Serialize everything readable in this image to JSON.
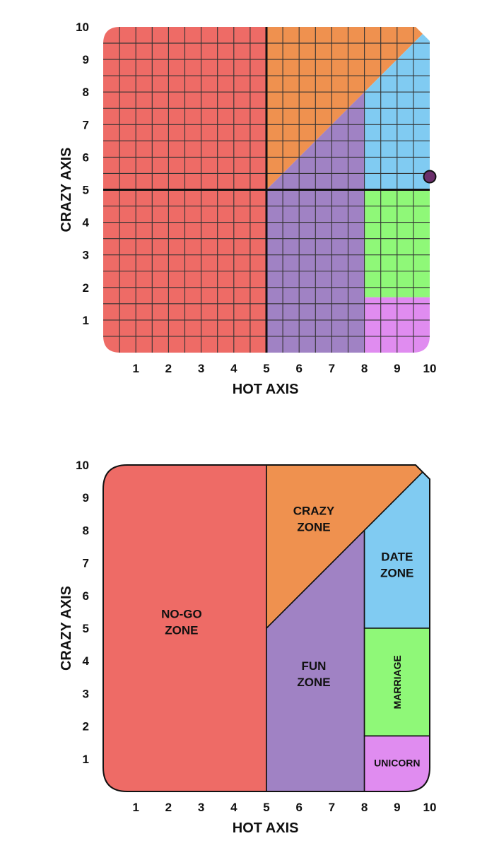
{
  "colors": {
    "no_go": "#ee6b66",
    "crazy": "#ef914f",
    "fun": "#a082c4",
    "date": "#80cbf2",
    "marriage": "#8ff878",
    "unicorn": "#e08cf0",
    "grid_line": "#333333",
    "axis_line": "#111111",
    "point": "#6b2e6b"
  },
  "chart_data": [
    {
      "type": "scatter",
      "variant": "grid-zones",
      "title": "",
      "xlabel": "HOT AXIS",
      "ylabel": "CRAZY AXIS",
      "xlim": [
        0,
        10
      ],
      "ylim": [
        0,
        10
      ],
      "x_ticks": [
        "1",
        "2",
        "3",
        "4",
        "5",
        "6",
        "7",
        "8",
        "9",
        "10"
      ],
      "y_ticks": [
        "1",
        "2",
        "3",
        "4",
        "5",
        "6",
        "7",
        "8",
        "9",
        "10"
      ],
      "grid": true,
      "grid_step": 0.5,
      "crosshair": {
        "x": 5,
        "y": 5
      },
      "points": [
        {
          "x": 10,
          "y": 5.4
        }
      ]
    },
    {
      "type": "area",
      "variant": "labeled-zones",
      "title": "",
      "xlabel": "HOT AXIS",
      "ylabel": "CRAZY AXIS",
      "xlim": [
        0,
        10
      ],
      "ylim": [
        0,
        10
      ],
      "x_ticks": [
        "1",
        "2",
        "3",
        "4",
        "5",
        "6",
        "7",
        "8",
        "9",
        "10"
      ],
      "y_ticks": [
        "1",
        "2",
        "3",
        "4",
        "5",
        "6",
        "7",
        "8",
        "9",
        "10"
      ],
      "grid": false,
      "zones": [
        {
          "key": "no_go",
          "label_lines": [
            "NO-GO",
            "ZONE"
          ],
          "polygon": [
            [
              0,
              0
            ],
            [
              5,
              0
            ],
            [
              5,
              10
            ],
            [
              0,
              10
            ]
          ]
        },
        {
          "key": "crazy",
          "label_lines": [
            "CRAZY",
            "ZONE"
          ],
          "polygon": [
            [
              5,
              5
            ],
            [
              5,
              10
            ],
            [
              10,
              10
            ]
          ]
        },
        {
          "key": "fun",
          "label_lines": [
            "FUN",
            "ZONE"
          ],
          "polygon": [
            [
              5,
              0
            ],
            [
              8,
              0
            ],
            [
              8,
              8
            ],
            [
              5,
              5
            ]
          ]
        },
        {
          "key": "date",
          "label_lines": [
            "DATE",
            "ZONE"
          ],
          "polygon": [
            [
              8,
              5
            ],
            [
              10,
              5
            ],
            [
              10,
              10
            ],
            [
              8,
              8
            ]
          ]
        },
        {
          "key": "marriage",
          "label_lines": [
            "MARRIAGE"
          ],
          "vertical": true,
          "polygon": [
            [
              8,
              1.7
            ],
            [
              10,
              1.7
            ],
            [
              10,
              5
            ],
            [
              8,
              5
            ]
          ]
        },
        {
          "key": "unicorn",
          "label_lines": [
            "UNICORN"
          ],
          "polygon": [
            [
              8,
              0
            ],
            [
              10,
              0
            ],
            [
              10,
              1.7
            ],
            [
              8,
              1.7
            ]
          ]
        }
      ]
    }
  ]
}
